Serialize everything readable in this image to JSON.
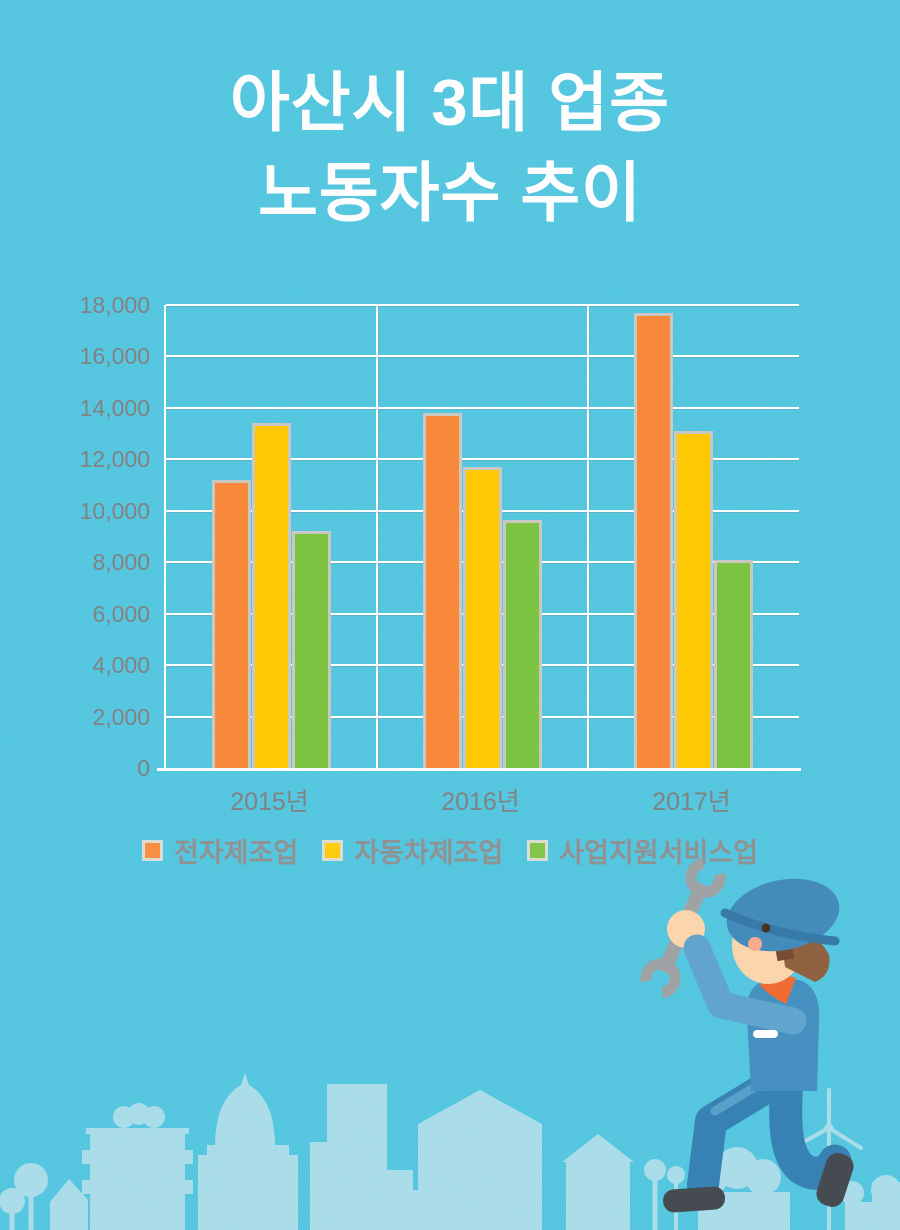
{
  "title": {
    "line1": "아산시 3대 업종",
    "line2": "노동자수 추이"
  },
  "chart_data": {
    "type": "bar",
    "title": "아산시 3대 업종 노동자수 추이",
    "categories": [
      "2015년",
      "2016년",
      "2017년"
    ],
    "series": [
      {
        "name": "전자제조업",
        "color": "#f8893a",
        "values": [
          11200,
          13800,
          17700
        ]
      },
      {
        "name": "자동차제조업",
        "color": "#fdc905",
        "values": [
          13400,
          11700,
          13100
        ]
      },
      {
        "name": "사업지원서비스업",
        "color": "#7dc342",
        "values": [
          9200,
          9650,
          8100
        ]
      }
    ],
    "xlabel": "",
    "ylabel": "",
    "ylim": [
      0,
      18000
    ],
    "y_tick_step": 2000,
    "y_tick_labels": [
      "0",
      "2,000",
      "4,000",
      "6,000",
      "8,000",
      "10,000",
      "12,000",
      "14,000",
      "16,000",
      "18,000"
    ],
    "grid": "horizontal gridlines + vertical category dividers, white on cyan",
    "legend_position": "bottom"
  },
  "colors": {
    "background": "#4ec4de",
    "skyline_silhouette": "#a6dbe8",
    "gridline": "#ffffff",
    "axis_text": "#7c7c7c",
    "legend_text": "#8c8c8c",
    "bar_border": "#c9c8c2",
    "title_text": "#fdfdfd"
  },
  "illustrations": {
    "worker": "kneeling mechanic in blue cap and uniform holding a wrench overhead",
    "background_scene": "pale city skyline silhouette with trees, dome building, church and wind turbine"
  }
}
